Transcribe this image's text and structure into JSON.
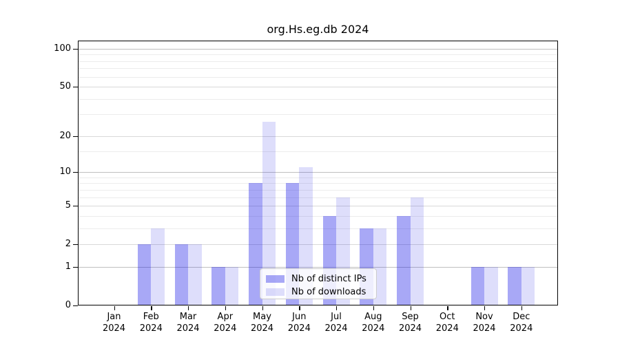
{
  "title": "org.Hs.eg.db 2024",
  "chart_data": {
    "type": "bar",
    "categories": [
      "Jan",
      "Feb",
      "Mar",
      "Apr",
      "May",
      "Jun",
      "Jul",
      "Aug",
      "Sep",
      "Oct",
      "Nov",
      "Dec"
    ],
    "year": "2024",
    "series": [
      {
        "name": "Nb of distinct IPs",
        "base_color": "#1414e6",
        "alpha": 0.37,
        "values": [
          0,
          2,
          2,
          1,
          8,
          8,
          4,
          3,
          4,
          0,
          1,
          1
        ]
      },
      {
        "name": "Nb of downloads",
        "base_color": "#1414e6",
        "alpha": 0.14,
        "values": [
          0,
          3,
          2,
          1,
          26,
          11,
          6,
          3,
          6,
          0,
          1,
          1
        ]
      }
    ],
    "y_axis": {
      "scale": "log1p",
      "ticks": [
        0,
        1,
        2,
        5,
        10,
        20,
        50,
        100
      ],
      "minor_ticks": [
        3,
        4,
        6,
        7,
        8,
        9,
        15,
        30,
        40,
        60,
        70,
        80,
        90
      ],
      "ylim": [
        0,
        116
      ]
    },
    "x_axis": {
      "tick_label_line2": "2024"
    },
    "legend": {
      "position": "lower-center",
      "entries": [
        "Nb of distinct IPs",
        "Nb of downloads"
      ]
    },
    "grid": true,
    "colors": {
      "grid_decade": "#bfbfbf",
      "grid_major": "#d8d8d8",
      "grid_minor": "#ececec",
      "spine": "#000000"
    }
  }
}
